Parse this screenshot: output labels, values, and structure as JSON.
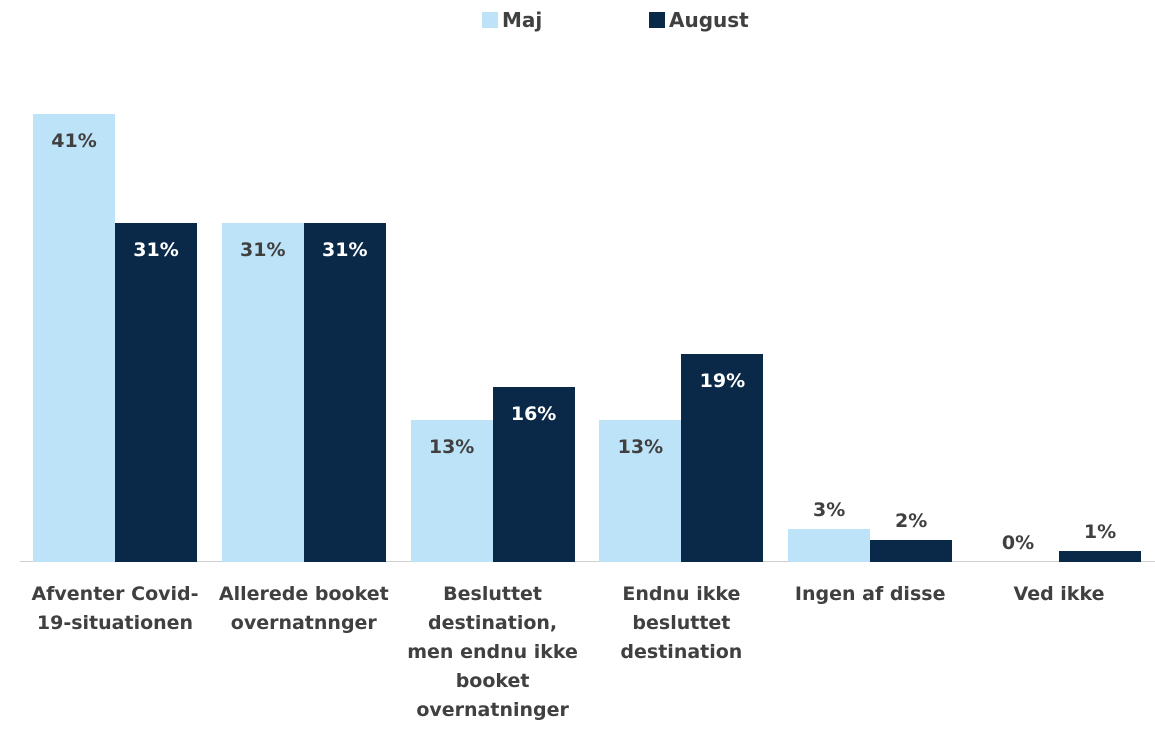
{
  "chart_data": {
    "type": "bar",
    "categories": [
      "Afventer Covid-19-situationen",
      "Allerede booket overnatnnger",
      "Besluttet destination, men endnu ikke booket overnatninger",
      "Endnu ikke besluttet destination",
      "Ingen af disse",
      "Ved ikke"
    ],
    "series": [
      {
        "name": "Maj",
        "color": "#bde3f9",
        "values": [
          41,
          31,
          13,
          13,
          3,
          0
        ],
        "value_labels": [
          "41%",
          "31%",
          "13%",
          "13%",
          "3%",
          "0%"
        ]
      },
      {
        "name": "August",
        "color": "#0a2847",
        "values": [
          31,
          31,
          16,
          19,
          2,
          1
        ],
        "value_labels": [
          "31%",
          "31%",
          "16%",
          "19%",
          "2%",
          "1%"
        ]
      }
    ],
    "legend": "top"
  }
}
